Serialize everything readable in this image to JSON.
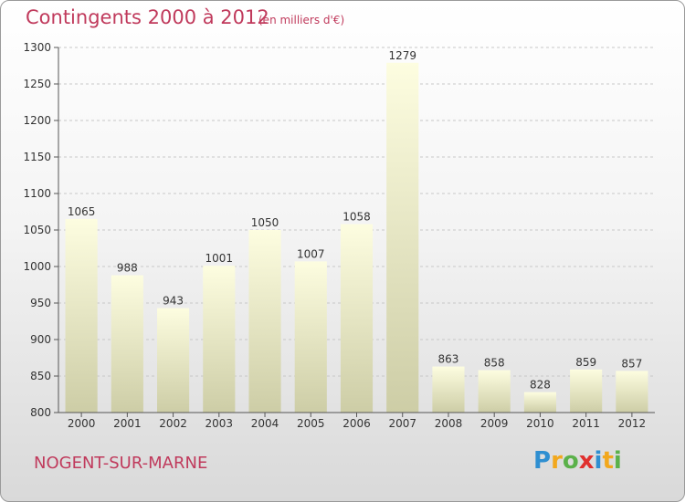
{
  "header": {
    "title": "Contingents 2000 à 2012",
    "subtitle": "(en milliers d'€)"
  },
  "footer": {
    "location": "NOGENT-SUR-MARNE",
    "logo_letters": [
      {
        "ch": "P",
        "color": "#2f8fd1"
      },
      {
        "ch": "r",
        "color": "#f2a81d"
      },
      {
        "ch": "o",
        "color": "#5bb14a"
      },
      {
        "ch": "x",
        "color": "#e0302e"
      },
      {
        "ch": "i",
        "color": "#2f8fd1"
      },
      {
        "ch": "t",
        "color": "#f2a81d"
      },
      {
        "ch": "i",
        "color": "#5bb14a"
      }
    ]
  },
  "chart_data": {
    "type": "bar",
    "title": "Contingents 2000 à 2012",
    "subtitle": "(en milliers d'€)",
    "categories": [
      "2000",
      "2001",
      "2002",
      "2003",
      "2004",
      "2005",
      "2006",
      "2007",
      "2008",
      "2009",
      "2010",
      "2011",
      "2012"
    ],
    "values": [
      1065,
      988,
      943,
      1001,
      1050,
      1007,
      1058,
      1279,
      863,
      858,
      828,
      859,
      857
    ],
    "ylim": [
      800,
      1300
    ],
    "yticks": [
      800,
      850,
      900,
      950,
      1000,
      1050,
      1100,
      1150,
      1200,
      1250,
      1300
    ],
    "grid": true,
    "colors": {
      "bar_top": "#fdfde0",
      "bar_bottom": "#cdcda6",
      "grid": "#c8c8c8",
      "axis": "#555555",
      "accent": "#c03a5c"
    }
  }
}
